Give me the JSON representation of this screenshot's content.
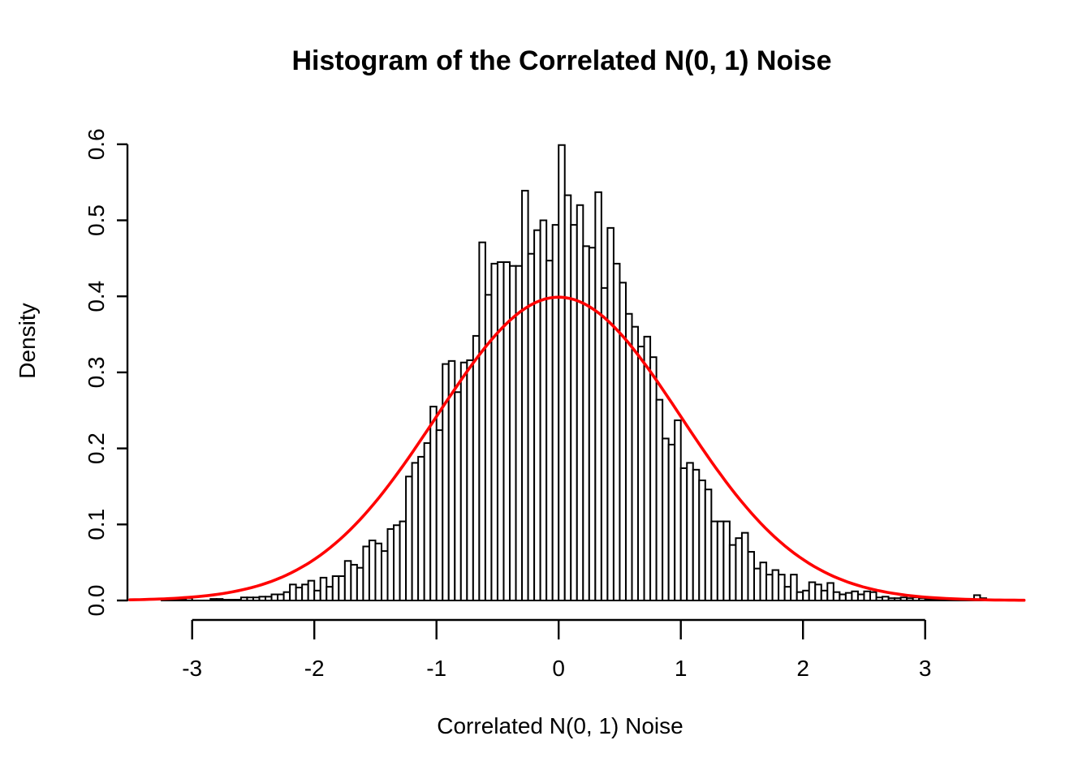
{
  "title": "Histogram of the Correlated N(0, 1) Noise",
  "chart_data": {
    "type": "histogram",
    "title": "Histogram of the Correlated N(0, 1) Noise",
    "xlabel": "Correlated N(0, 1) Noise",
    "ylabel": "Density",
    "x_ticks": [
      -3,
      -2,
      -1,
      0,
      1,
      2,
      3
    ],
    "y_ticks": [
      "0.0",
      "0.1",
      "0.2",
      "0.3",
      "0.4",
      "0.5",
      "0.6"
    ],
    "xlim": [
      -3.6,
      3.9
    ],
    "ylim": [
      0,
      0.6
    ],
    "grid": false,
    "legend": "none",
    "bar_fill": "#ffffff",
    "bar_border": "#000000",
    "bin_start": -3.25,
    "bin_width": 0.05,
    "densities": [
      0.001,
      0.001,
      0.001,
      0.001,
      0.003,
      0,
      0,
      0,
      0.002,
      0.002,
      0.001,
      0.001,
      0.001,
      0.004,
      0.004,
      0.004,
      0.005,
      0.005,
      0.008,
      0.008,
      0.011,
      0.021,
      0.017,
      0.021,
      0.026,
      0.013,
      0.03,
      0.018,
      0.032,
      0.032,
      0.052,
      0.047,
      0.043,
      0.071,
      0.079,
      0.075,
      0.065,
      0.094,
      0.099,
      0.104,
      0.163,
      0.181,
      0.189,
      0.207,
      0.255,
      0.224,
      0.311,
      0.315,
      0.274,
      0.313,
      0.316,
      0.348,
      0.471,
      0.402,
      0.443,
      0.445,
      0.445,
      0.44,
      0.44,
      0.539,
      0.456,
      0.487,
      0.5,
      0.447,
      0.494,
      0.599,
      0.533,
      0.494,
      0.52,
      0.466,
      0.464,
      0.537,
      0.411,
      0.49,
      0.443,
      0.418,
      0.377,
      0.36,
      0.334,
      0.347,
      0.32,
      0.264,
      0.213,
      0.205,
      0.237,
      0.174,
      0.181,
      0.172,
      0.158,
      0.146,
      0.104,
      0.104,
      0.104,
      0.073,
      0.082,
      0.089,
      0.064,
      0.042,
      0.05,
      0.034,
      0.04,
      0.034,
      0.018,
      0.034,
      0.011,
      0.013,
      0.024,
      0.021,
      0.013,
      0.023,
      0.011,
      0.008,
      0.01,
      0.012,
      0.008,
      0.012,
      0.011,
      0.004,
      0.005,
      0.003,
      0.003,
      0.004,
      0.003,
      0.004,
      0.003,
      0.002,
      0.002,
      0.002,
      0.001,
      0.002,
      0.001,
      0.001,
      0.002,
      0.007,
      0.003
    ],
    "curve": {
      "name": "normal-density-overlay",
      "distribution": "N(0, 1)",
      "color": "#ff0000",
      "mean": 0,
      "sd": 1,
      "peak": 0.39894,
      "x_range": [
        -3.51,
        3.83
      ]
    }
  }
}
